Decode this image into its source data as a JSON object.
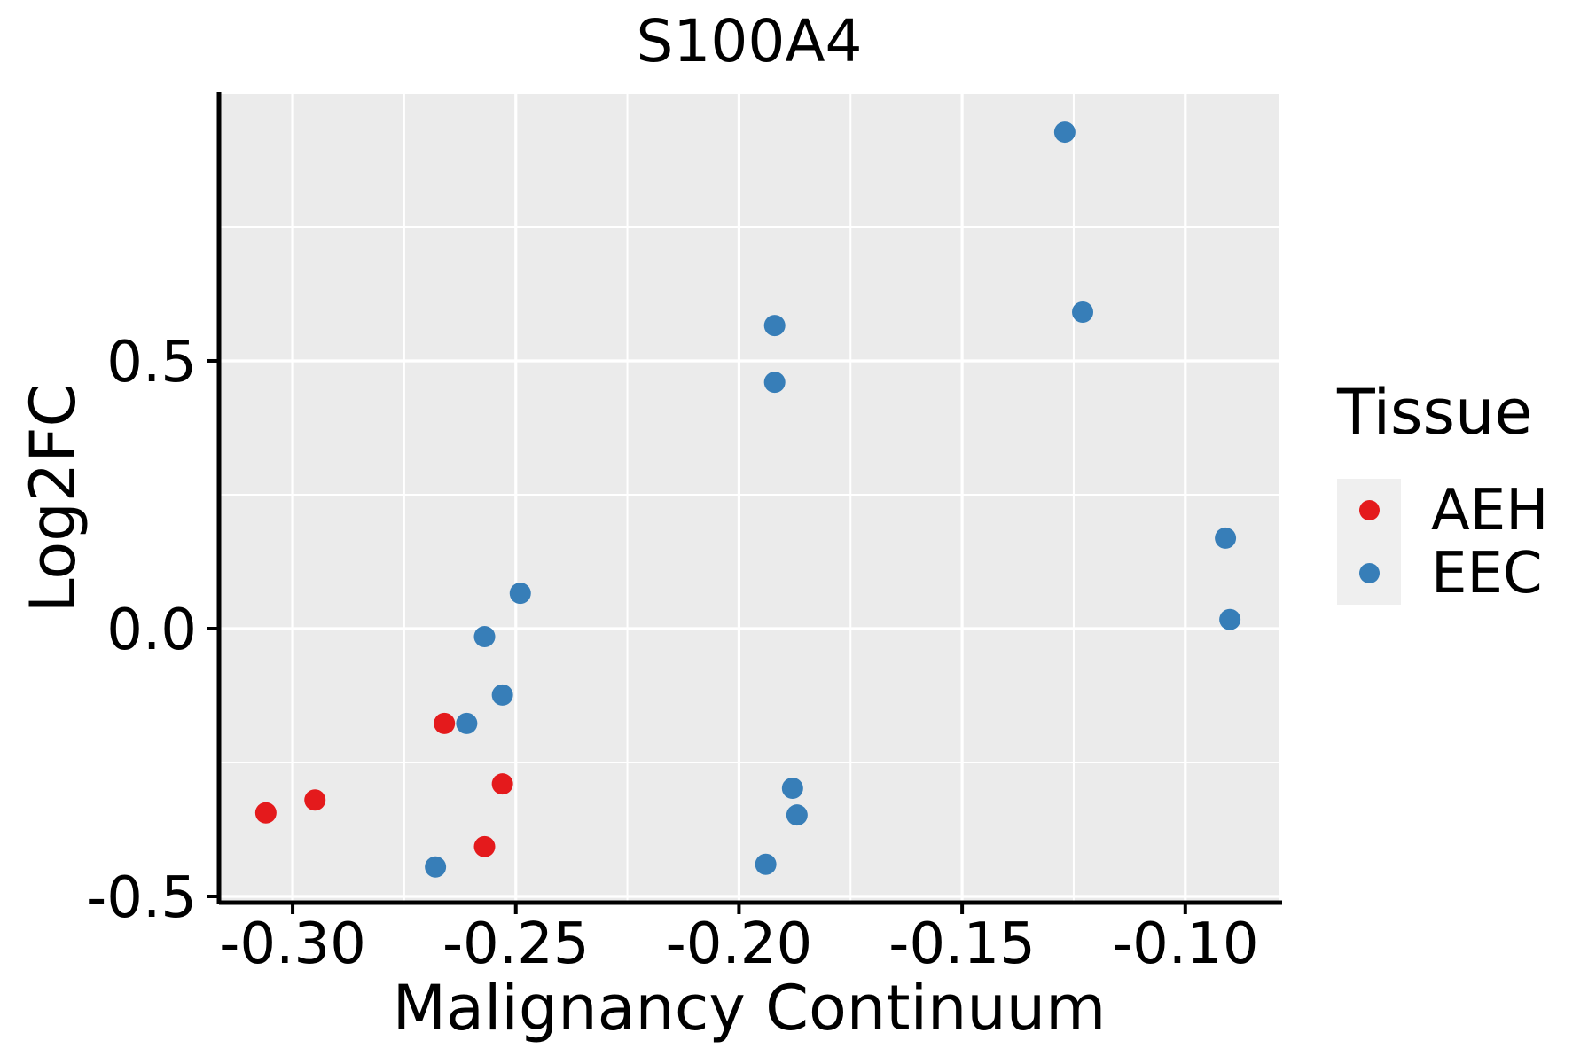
{
  "title": "S100A4",
  "style": {
    "panel_bg": "#EBEBEB",
    "grid_color": "#FFFFFF",
    "axis_color": "#000000",
    "tick_label_color": "#000000",
    "legend_key_bg": "#EFEFEF",
    "aeh_color": "#E41A1C",
    "eec_color": "#377EB8",
    "point_radius": 12
  },
  "chart_data": {
    "type": "scatter",
    "title": "S100A4",
    "xlabel": "Malignancy Continuum",
    "ylabel": "Log2FC",
    "xlim": [
      -0.3165,
      -0.0789
    ],
    "ylim": [
      -0.5116,
      0.9983
    ],
    "x_ticks": {
      "values": [
        -0.3,
        -0.25,
        -0.2,
        -0.15,
        -0.1
      ],
      "labels": [
        "-0.30",
        "-0.25",
        "-0.20",
        "-0.15",
        "-0.10"
      ],
      "minor": [
        -0.275,
        -0.225,
        -0.175,
        -0.125
      ]
    },
    "y_ticks": {
      "values": [
        0.5,
        0.0,
        -0.5
      ],
      "labels": [
        "0.5",
        "0.0",
        "-0.5"
      ],
      "minor": [
        0.75,
        0.25,
        -0.25
      ]
    },
    "grid": "white major and minor gridlines on gray panel",
    "legend": {
      "title": "Tissue",
      "position": "right"
    },
    "series": [
      {
        "name": "AEH",
        "color": "#E41A1C",
        "points": [
          [
            -0.306,
            -0.344
          ],
          [
            -0.295,
            -0.32
          ],
          [
            -0.266,
            -0.177
          ],
          [
            -0.257,
            -0.407
          ],
          [
            -0.253,
            -0.29
          ]
        ]
      },
      {
        "name": "EEC",
        "color": "#377EB8",
        "points": [
          [
            -0.268,
            -0.445
          ],
          [
            -0.261,
            -0.177
          ],
          [
            -0.257,
            -0.015
          ],
          [
            -0.253,
            -0.124
          ],
          [
            -0.249,
            0.066
          ],
          [
            -0.194,
            -0.44
          ],
          [
            -0.192,
            0.566
          ],
          [
            -0.192,
            0.46
          ],
          [
            -0.188,
            -0.298
          ],
          [
            -0.187,
            -0.348
          ],
          [
            -0.127,
            0.927
          ],
          [
            -0.123,
            0.591
          ],
          [
            -0.091,
            0.169
          ],
          [
            -0.09,
            0.017
          ]
        ]
      }
    ]
  }
}
